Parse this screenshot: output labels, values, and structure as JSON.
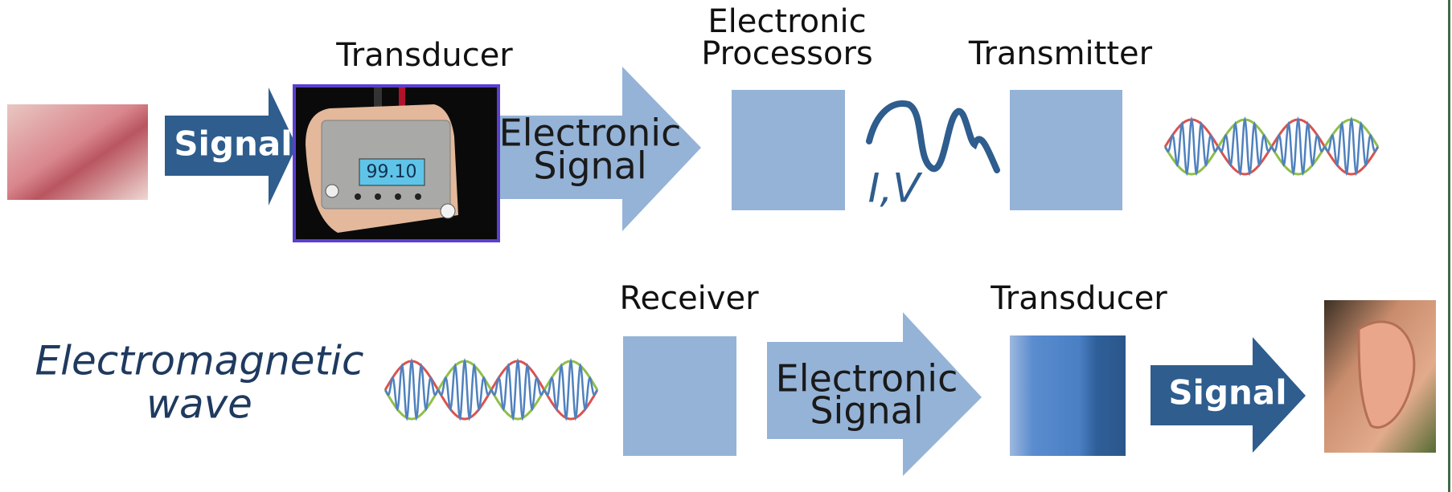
{
  "top_row": {
    "input_arrow": "Signal",
    "transducer": "Transducer",
    "device_display": "99.10",
    "signal_arrow": [
      "Electronic",
      "Signal"
    ],
    "processors": [
      "Electronic",
      "Processors"
    ],
    "waveform_label": "I,V",
    "transmitter": "Transmitter"
  },
  "bottom_row": {
    "wave_label": [
      "Electromagnetic",
      "wave"
    ],
    "receiver": "Receiver",
    "signal_arrow": [
      "Electronic",
      "Signal"
    ],
    "transducer": "Transducer",
    "output_arrow": "Signal"
  }
}
